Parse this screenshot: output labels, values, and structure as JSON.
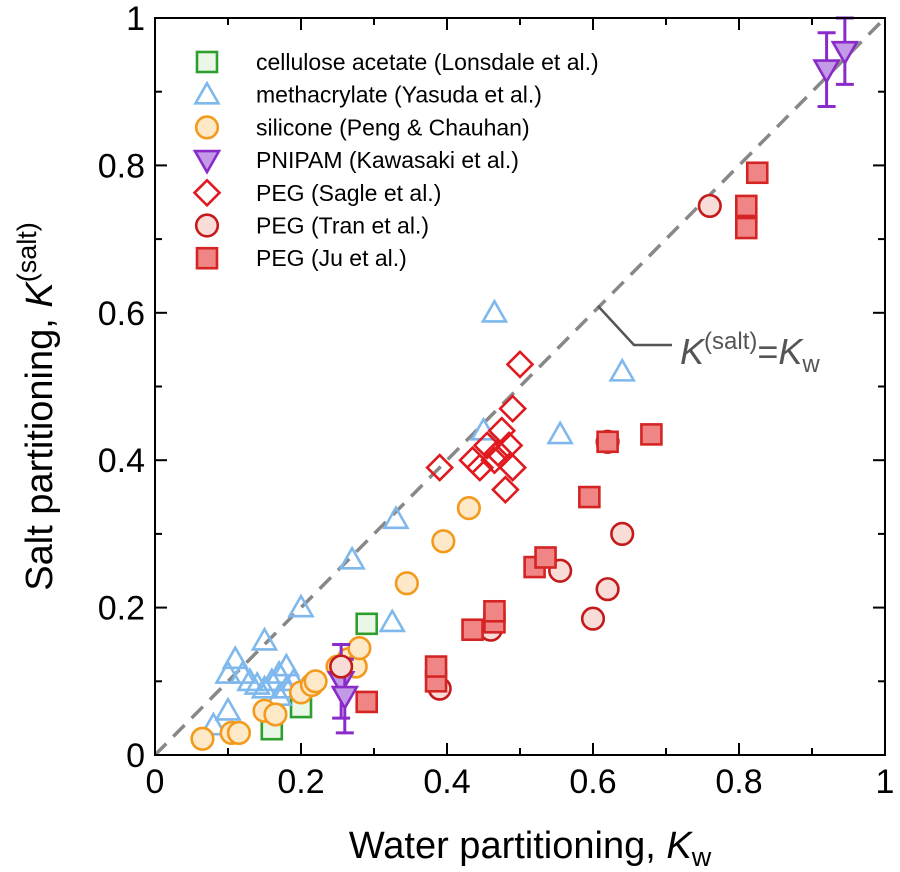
{
  "chart_data": {
    "type": "scatter",
    "xlabel": "Water partitioning, ",
    "xlabel_symbol": "K",
    "xlabel_sub": "w",
    "ylabel": "Salt partitioning, ",
    "ylabel_symbol": "K",
    "ylabel_sup": "(salt)",
    "xlim": [
      0,
      1
    ],
    "ylim": [
      0,
      1
    ],
    "x_ticks": [
      "0",
      "0.2",
      "0.4",
      "0.6",
      "0.8",
      "1"
    ],
    "y_ticks": [
      "0",
      "0.2",
      "0.4",
      "0.6",
      "0.8",
      "1"
    ],
    "grid": false,
    "legend_position": "top-left",
    "reference_line": {
      "style": "dashed",
      "color": "#888888",
      "label_symbol": "K",
      "label_sup": "(salt)",
      "label_equals": "=",
      "label_symbol2": "K",
      "label_sub": "w"
    },
    "series": [
      {
        "name": "cellulose acetate (Lonsdale et al.)",
        "marker": "square",
        "stroke": "#2e9e2e",
        "fill": "#eaf6e6",
        "points": [
          [
            0.16,
            0.035
          ],
          [
            0.2,
            0.065
          ],
          [
            0.29,
            0.178
          ]
        ]
      },
      {
        "name": "methacrylate (Yasuda et al.)",
        "marker": "triangle-up",
        "stroke": "#7fb8ec",
        "fill": "none",
        "points": [
          [
            0.08,
            0.04
          ],
          [
            0.1,
            0.06
          ],
          [
            0.1,
            0.11
          ],
          [
            0.11,
            0.13
          ],
          [
            0.12,
            0.11
          ],
          [
            0.13,
            0.1
          ],
          [
            0.14,
            0.095
          ],
          [
            0.15,
            0.155
          ],
          [
            0.15,
            0.09
          ],
          [
            0.16,
            0.1
          ],
          [
            0.17,
            0.08
          ],
          [
            0.17,
            0.11
          ],
          [
            0.18,
            0.12
          ],
          [
            0.18,
            0.09
          ],
          [
            0.19,
            0.1
          ],
          [
            0.2,
            0.2
          ],
          [
            0.27,
            0.265
          ],
          [
            0.325,
            0.18
          ],
          [
            0.33,
            0.32
          ],
          [
            0.45,
            0.44
          ],
          [
            0.465,
            0.6
          ],
          [
            0.555,
            0.435
          ],
          [
            0.64,
            0.52
          ]
        ]
      },
      {
        "name": "silicone (Peng & Chauhan)",
        "marker": "circle",
        "stroke": "#f39a1c",
        "fill": "#fde8c8",
        "points": [
          [
            0.065,
            0.022
          ],
          [
            0.105,
            0.03
          ],
          [
            0.115,
            0.03
          ],
          [
            0.15,
            0.06
          ],
          [
            0.165,
            0.055
          ],
          [
            0.2,
            0.085
          ],
          [
            0.215,
            0.095
          ],
          [
            0.22,
            0.1
          ],
          [
            0.25,
            0.12
          ],
          [
            0.265,
            0.13
          ],
          [
            0.275,
            0.12
          ],
          [
            0.28,
            0.145
          ],
          [
            0.345,
            0.233
          ],
          [
            0.395,
            0.29
          ],
          [
            0.43,
            0.335
          ]
        ]
      },
      {
        "name": "PNIPAM (Kawasaki et al.)",
        "marker": "triangle-down",
        "stroke": "#8a2bc9",
        "fill": "#c39ae6",
        "points": [
          [
            0.255,
            0.1
          ],
          [
            0.26,
            0.08
          ],
          [
            0.92,
            0.93
          ],
          [
            0.945,
            0.955
          ]
        ],
        "yerr": [
          0.05,
          0.05,
          0.05,
          0.045
        ]
      },
      {
        "name": "PEG (Sagle et al.)",
        "marker": "diamond",
        "stroke": "#e0191f",
        "fill": "none",
        "points": [
          [
            0.39,
            0.39
          ],
          [
            0.435,
            0.4
          ],
          [
            0.445,
            0.39
          ],
          [
            0.455,
            0.42
          ],
          [
            0.465,
            0.4
          ],
          [
            0.47,
            0.41
          ],
          [
            0.475,
            0.44
          ],
          [
            0.48,
            0.36
          ],
          [
            0.485,
            0.42
          ],
          [
            0.49,
            0.39
          ],
          [
            0.49,
            0.47
          ],
          [
            0.5,
            0.53
          ]
        ]
      },
      {
        "name": "PEG (Tran et al.)",
        "marker": "circle",
        "stroke": "#c41a1a",
        "fill": "#f7dcd8",
        "points": [
          [
            0.255,
            0.12
          ],
          [
            0.39,
            0.09
          ],
          [
            0.46,
            0.17
          ],
          [
            0.555,
            0.25
          ],
          [
            0.6,
            0.185
          ],
          [
            0.62,
            0.225
          ],
          [
            0.62,
            0.425
          ],
          [
            0.64,
            0.3
          ],
          [
            0.76,
            0.745
          ]
        ]
      },
      {
        "name": "PEG (Ju et al.)",
        "marker": "square",
        "stroke": "#d42424",
        "fill": "#f08585",
        "points": [
          [
            0.29,
            0.072
          ],
          [
            0.385,
            0.1
          ],
          [
            0.385,
            0.12
          ],
          [
            0.435,
            0.17
          ],
          [
            0.465,
            0.18
          ],
          [
            0.465,
            0.195
          ],
          [
            0.52,
            0.255
          ],
          [
            0.535,
            0.268
          ],
          [
            0.595,
            0.35
          ],
          [
            0.62,
            0.425
          ],
          [
            0.68,
            0.435
          ],
          [
            0.81,
            0.715
          ],
          [
            0.81,
            0.745
          ],
          [
            0.825,
            0.79
          ]
        ]
      }
    ]
  }
}
